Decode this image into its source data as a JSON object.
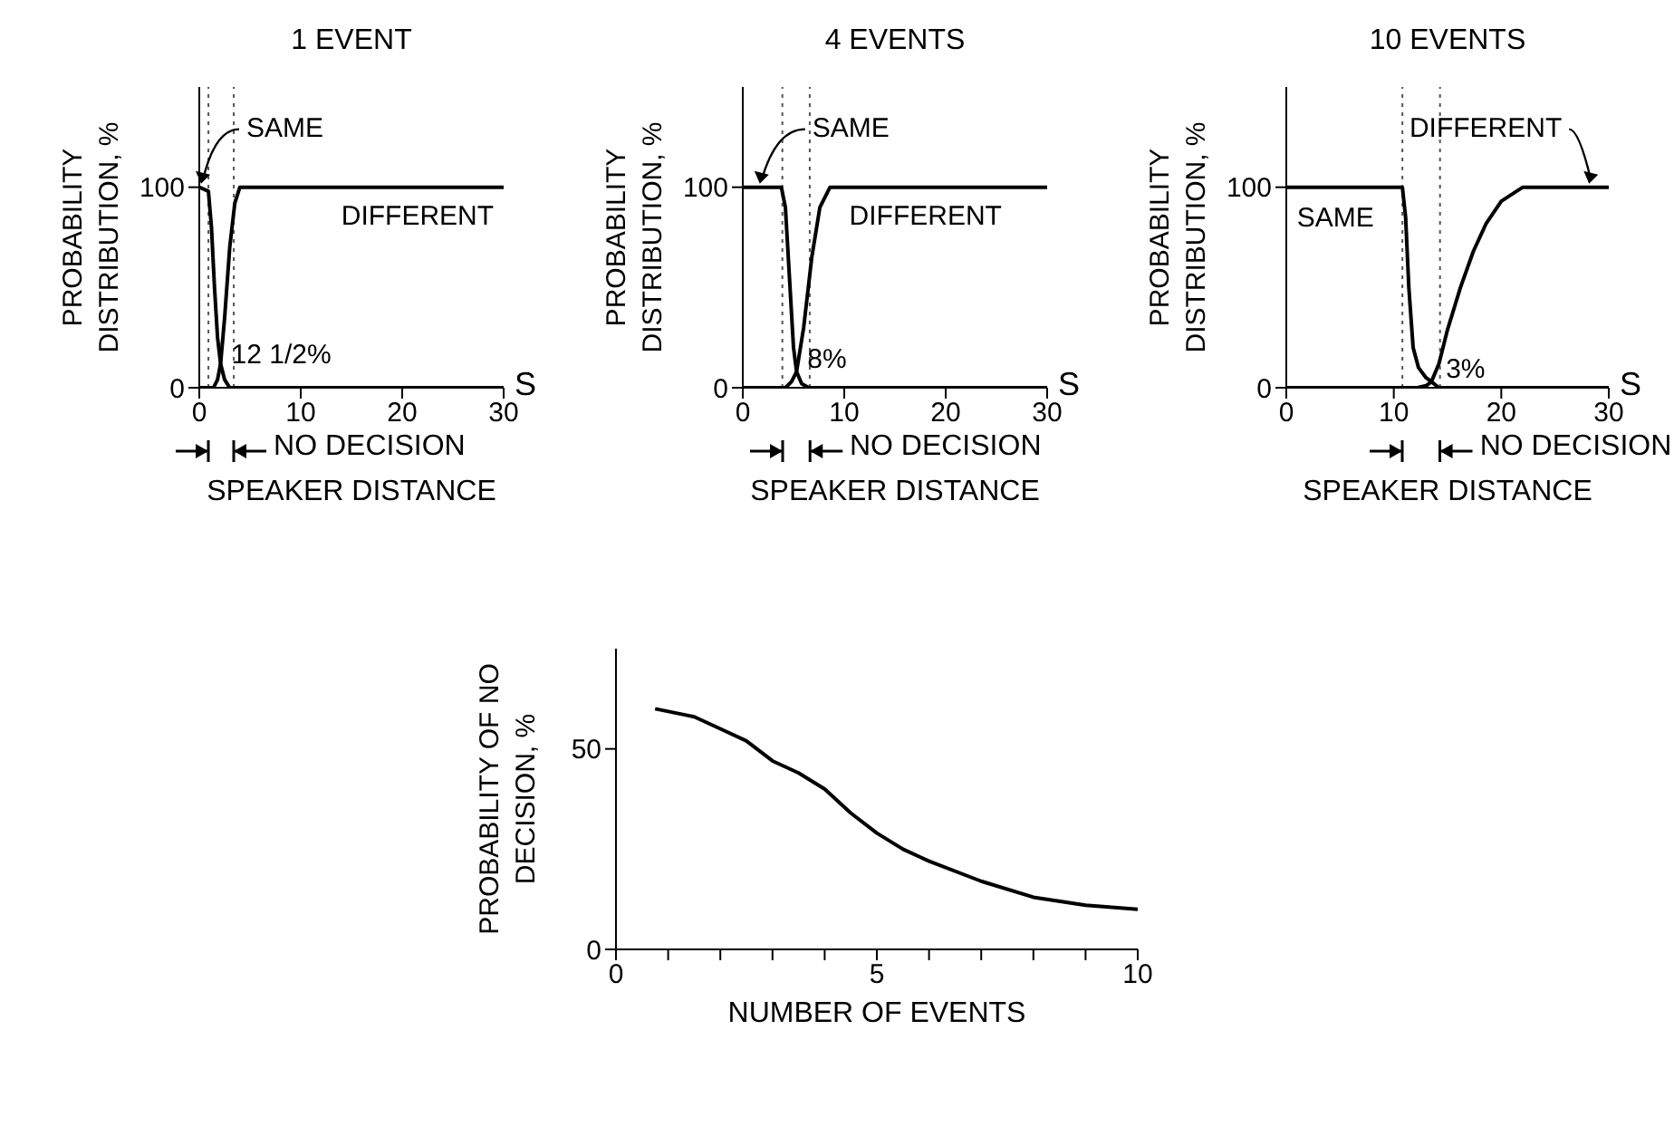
{
  "chart_data": [
    {
      "type": "line",
      "title": "1 EVENT",
      "xlabel": "SPEAKER DISTANCE",
      "ylabel": "PROBABILITY DISTRIBUTION, %",
      "xlim": [
        0,
        30
      ],
      "xticks": [
        0,
        10,
        20,
        30
      ],
      "ylim": [
        0,
        150
      ],
      "yticks": [
        0,
        100
      ],
      "series": [
        {
          "color": "#000000",
          "x": [
            0,
            0.9,
            1.2,
            1.5,
            1.8,
            2.1,
            2.5,
            3,
            30
          ],
          "values": [
            100,
            98,
            80,
            50,
            25,
            12,
            4,
            0,
            0
          ]
        },
        {
          "color": "#000000",
          "x": [
            0,
            1.4,
            1.8,
            2.1,
            2.5,
            3,
            3.5,
            4,
            30
          ],
          "values": [
            0,
            0,
            4,
            12,
            35,
            70,
            92,
            100,
            100
          ]
        }
      ],
      "ref_lines": [
        {
          "axis": "x",
          "value": 0.9,
          "line_style": "dotted"
        },
        {
          "axis": "x",
          "value": 3.4,
          "line_style": "dotted"
        }
      ],
      "annotations": [
        "S",
        "NO DECISION",
        "DIFFERENT",
        {
          "text": "SAME",
          "x": 0,
          "y": 100
        },
        {
          "text": "12 1/2%",
          "x": 2.1,
          "y": 12
        }
      ]
    },
    {
      "type": "line",
      "title": "4 EVENTS",
      "xlabel": "SPEAKER DISTANCE",
      "ylabel": "PROBABILITY DISTRIBUTION, %",
      "xlim": [
        0,
        30
      ],
      "xticks": [
        0,
        10,
        20,
        30
      ],
      "ylim": [
        0,
        150
      ],
      "yticks": [
        0,
        100
      ],
      "series": [
        {
          "color": "#000000",
          "x": [
            0,
            3.8,
            4.2,
            4.6,
            5,
            5.3,
            5.8,
            6.5,
            30
          ],
          "values": [
            100,
            100,
            90,
            55,
            20,
            8,
            2,
            0,
            0
          ]
        },
        {
          "color": "#000000",
          "x": [
            0,
            4.2,
            4.8,
            5.3,
            6,
            6.8,
            7.6,
            8.6,
            30
          ],
          "values": [
            0,
            0,
            3,
            8,
            30,
            65,
            90,
            100,
            100
          ]
        }
      ],
      "ref_lines": [
        {
          "axis": "x",
          "value": 3.9,
          "line_style": "dotted"
        },
        {
          "axis": "x",
          "value": 6.6,
          "line_style": "dotted"
        }
      ],
      "annotations": [
        "S",
        "NO DECISION",
        "DIFFERENT",
        {
          "text": "SAME",
          "x": 1.5,
          "y": 100
        },
        {
          "text": "8%",
          "x": 5.3,
          "y": 8
        }
      ]
    },
    {
      "type": "line",
      "title": "10 EVENTS",
      "xlabel": "SPEAKER DISTANCE",
      "ylabel": "PROBABILITY DISTRIBUTION, %",
      "xlim": [
        0,
        30
      ],
      "xticks": [
        0,
        10,
        20,
        30
      ],
      "ylim": [
        0,
        150
      ],
      "yticks": [
        0,
        100
      ],
      "series": [
        {
          "color": "#000000",
          "x": [
            0,
            10.8,
            11.1,
            11.4,
            11.8,
            12.3,
            13,
            13.5,
            14.2,
            30
          ],
          "values": [
            100,
            100,
            85,
            50,
            20,
            10,
            5,
            3,
            0,
            0
          ]
        },
        {
          "color": "#000000",
          "x": [
            0,
            12.2,
            13,
            13.5,
            14.2,
            15,
            16.2,
            17.4,
            18.6,
            20,
            22,
            30
          ],
          "values": [
            0,
            0,
            1,
            3,
            12,
            29,
            50,
            68,
            82,
            93,
            100,
            100
          ]
        }
      ],
      "ref_lines": [
        {
          "axis": "x",
          "value": 10.8,
          "line_style": "dotted"
        },
        {
          "axis": "x",
          "value": 14.3,
          "line_style": "dotted"
        }
      ],
      "annotations": [
        "S",
        "NO DECISION",
        "SAME",
        {
          "text": "DIFFERENT",
          "x": 28,
          "y": 100
        },
        {
          "text": "3%",
          "x": 13.5,
          "y": 3
        }
      ]
    },
    {
      "type": "line",
      "xlabel": "NUMBER OF EVENTS",
      "ylabel": "PROBABILITY OF NO DECISION, %",
      "xlim": [
        0,
        10
      ],
      "xticks": [
        0,
        {
          "value": 1,
          "label": null
        },
        {
          "value": 2,
          "label": null
        },
        {
          "value": 3,
          "label": null
        },
        {
          "value": 4,
          "label": null
        },
        5,
        {
          "value": 6,
          "label": null
        },
        {
          "value": 7,
          "label": null
        },
        {
          "value": 8,
          "label": null
        },
        {
          "value": 9,
          "label": null
        },
        10
      ],
      "ylim": [
        0,
        75
      ],
      "yticks": [
        0,
        50
      ],
      "series": [
        {
          "color": "#000000",
          "x": [
            0.75,
            1.5,
            2,
            2.5,
            3,
            3.5,
            4,
            4.5,
            5,
            5.5,
            6,
            7,
            8,
            9,
            10
          ],
          "values": [
            60,
            58,
            55,
            52,
            47,
            44,
            40,
            34,
            29,
            25,
            22,
            17,
            13,
            11,
            10
          ]
        }
      ]
    }
  ]
}
